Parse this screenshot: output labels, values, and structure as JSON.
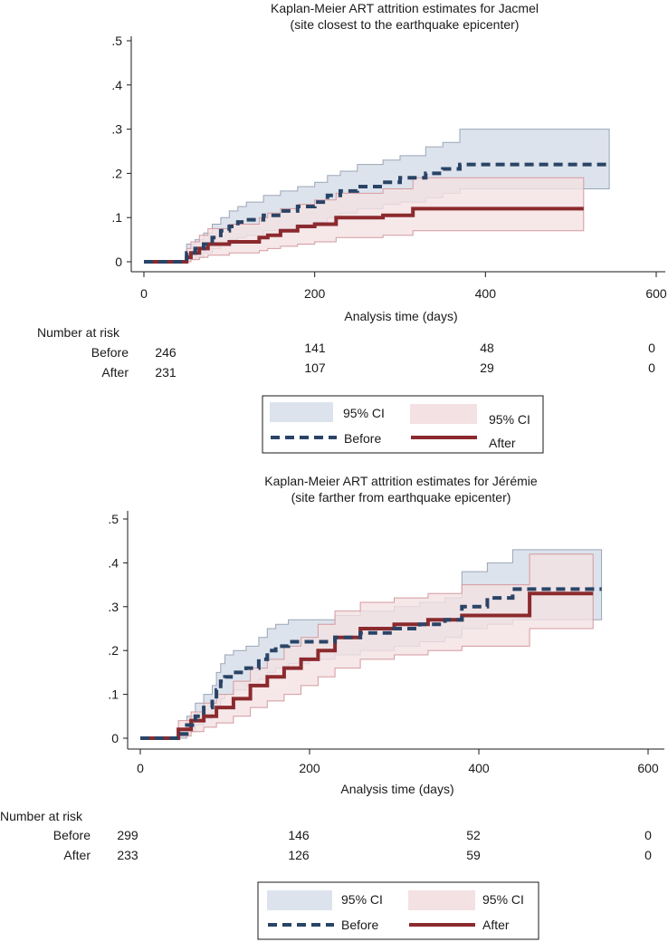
{
  "chart_data": [
    {
      "type": "line",
      "title": "Kaplan-Meier ART attrition estimates for Jacmel",
      "subtitle": "(site closest to the earthquake epicenter)",
      "xlabel": "Analysis time (days)",
      "ylabel": "",
      "xlim": [
        0,
        600
      ],
      "ylim": [
        0,
        0.5
      ],
      "x_ticks": [
        0,
        200,
        400,
        600
      ],
      "x_tick_labels": [
        "0",
        "200",
        "400",
        "600"
      ],
      "y_ticks": [
        0,
        0.1,
        0.2,
        0.3,
        0.4,
        0.5
      ],
      "y_tick_labels": [
        "0",
        ".1",
        ".2",
        ".3",
        ".4",
        ".5"
      ],
      "grid": false,
      "legend_position": "bottom",
      "legend": {
        "ci_before_label": "95% CI",
        "ci_after_label": "95% CI",
        "before_label": "Before",
        "after_label": "After"
      },
      "colors": {
        "before": "#2a4466",
        "after": "#8b2a2e",
        "ci_before_fill": "#dde3ec",
        "ci_before_edge": "#9aa6b6",
        "ci_after_fill": "#f4e1e3",
        "ci_after_edge": "#d49a9f"
      },
      "series": [
        {
          "name": "Before",
          "style": "dashed",
          "x": [
            0,
            45,
            50,
            60,
            70,
            80,
            90,
            100,
            110,
            120,
            140,
            160,
            180,
            200,
            215,
            230,
            250,
            280,
            300,
            330,
            350,
            370,
            545
          ],
          "y": [
            0,
            0,
            0.02,
            0.03,
            0.04,
            0.055,
            0.07,
            0.08,
            0.09,
            0.095,
            0.105,
            0.115,
            0.125,
            0.135,
            0.15,
            0.16,
            0.17,
            0.18,
            0.19,
            0.2,
            0.21,
            0.22,
            0.22
          ],
          "ci_lower": [
            0,
            0,
            0.005,
            0.01,
            0.02,
            0.03,
            0.04,
            0.05,
            0.055,
            0.06,
            0.07,
            0.075,
            0.085,
            0.09,
            0.1,
            0.11,
            0.12,
            0.13,
            0.135,
            0.145,
            0.155,
            0.165,
            0.165
          ],
          "ci_upper": [
            0,
            0,
            0.04,
            0.05,
            0.065,
            0.085,
            0.1,
            0.115,
            0.125,
            0.135,
            0.15,
            0.16,
            0.17,
            0.18,
            0.195,
            0.205,
            0.22,
            0.23,
            0.24,
            0.26,
            0.27,
            0.3,
            0.3
          ]
        },
        {
          "name": "After",
          "style": "solid",
          "x": [
            0,
            45,
            50,
            55,
            65,
            75,
            100,
            135,
            145,
            160,
            180,
            200,
            225,
            280,
            315,
            515
          ],
          "y": [
            0,
            0,
            0.01,
            0.02,
            0.03,
            0.04,
            0.045,
            0.055,
            0.06,
            0.07,
            0.08,
            0.085,
            0.1,
            0.105,
            0.12,
            0.12
          ],
          "ci_lower": [
            0,
            0,
            0,
            0.005,
            0.01,
            0.015,
            0.02,
            0.025,
            0.03,
            0.035,
            0.04,
            0.045,
            0.055,
            0.06,
            0.07,
            0.07
          ],
          "ci_upper": [
            0,
            0,
            0.03,
            0.045,
            0.06,
            0.075,
            0.085,
            0.1,
            0.11,
            0.12,
            0.13,
            0.14,
            0.155,
            0.165,
            0.19,
            0.19
          ]
        }
      ],
      "number_at_risk": {
        "heading": "Number at risk",
        "rows": [
          {
            "label": "Before",
            "values": [
              "246",
              "141",
              "48",
              "0"
            ]
          },
          {
            "label": "After",
            "values": [
              "231",
              "107",
              "29",
              "0"
            ]
          }
        ]
      }
    },
    {
      "type": "line",
      "title": "Kaplan-Meier ART attrition estimates for Jérémie",
      "subtitle": "(site farther from earthquake epicenter)",
      "xlabel": "Analysis time (days)",
      "ylabel": "",
      "xlim": [
        0,
        600
      ],
      "ylim": [
        0,
        0.5
      ],
      "x_ticks": [
        0,
        200,
        400,
        600
      ],
      "x_tick_labels": [
        "0",
        "200",
        "400",
        "600"
      ],
      "y_ticks": [
        0,
        0.1,
        0.2,
        0.3,
        0.4,
        0.5
      ],
      "y_tick_labels": [
        "0",
        ".1",
        ".2",
        ".3",
        ".4",
        ".5"
      ],
      "grid": false,
      "legend_position": "bottom",
      "legend": {
        "ci_before_label": "95% CI",
        "ci_after_label": "95% CI",
        "before_label": "Before",
        "after_label": "After"
      },
      "colors": {
        "before": "#2a4466",
        "after": "#8b2a2e",
        "ci_before_fill": "#dde3ec",
        "ci_before_edge": "#9aa6b6",
        "ci_after_fill": "#f4e1e3",
        "ci_after_edge": "#d49a9f"
      },
      "series": [
        {
          "name": "Before",
          "style": "dashed",
          "x": [
            0,
            40,
            45,
            55,
            65,
            75,
            85,
            90,
            95,
            100,
            110,
            125,
            140,
            150,
            160,
            175,
            200,
            230,
            260,
            300,
            330,
            360,
            380,
            410,
            440,
            545
          ],
          "y": [
            0,
            0,
            0.01,
            0.03,
            0.05,
            0.07,
            0.09,
            0.11,
            0.13,
            0.14,
            0.15,
            0.16,
            0.18,
            0.2,
            0.21,
            0.22,
            0.22,
            0.23,
            0.24,
            0.25,
            0.26,
            0.27,
            0.3,
            0.32,
            0.34,
            0.34
          ],
          "ci_lower": [
            0,
            0,
            0,
            0.015,
            0.03,
            0.045,
            0.06,
            0.075,
            0.09,
            0.1,
            0.11,
            0.12,
            0.135,
            0.15,
            0.16,
            0.17,
            0.18,
            0.19,
            0.2,
            0.21,
            0.22,
            0.23,
            0.25,
            0.26,
            0.27,
            0.27
          ],
          "ci_upper": [
            0,
            0,
            0.02,
            0.05,
            0.08,
            0.1,
            0.12,
            0.15,
            0.17,
            0.19,
            0.2,
            0.21,
            0.23,
            0.25,
            0.26,
            0.27,
            0.27,
            0.28,
            0.29,
            0.3,
            0.31,
            0.32,
            0.38,
            0.4,
            0.43,
            0.43
          ]
        },
        {
          "name": "After",
          "style": "solid",
          "x": [
            0,
            40,
            45,
            60,
            75,
            90,
            110,
            130,
            150,
            170,
            190,
            210,
            230,
            260,
            300,
            340,
            380,
            460,
            535
          ],
          "y": [
            0,
            0,
            0.02,
            0.04,
            0.05,
            0.07,
            0.09,
            0.12,
            0.14,
            0.16,
            0.18,
            0.2,
            0.23,
            0.25,
            0.26,
            0.27,
            0.28,
            0.33,
            0.33
          ],
          "ci_lower": [
            0,
            0,
            0.005,
            0.015,
            0.025,
            0.035,
            0.05,
            0.07,
            0.085,
            0.1,
            0.12,
            0.14,
            0.16,
            0.18,
            0.19,
            0.2,
            0.21,
            0.25,
            0.25
          ],
          "ci_upper": [
            0,
            0,
            0.04,
            0.06,
            0.08,
            0.1,
            0.13,
            0.16,
            0.18,
            0.21,
            0.23,
            0.26,
            0.29,
            0.31,
            0.32,
            0.33,
            0.35,
            0.42,
            0.42
          ]
        }
      ],
      "number_at_risk": {
        "heading": "Number at risk",
        "rows": [
          {
            "label": "Before",
            "values": [
              "299",
              "146",
              "52",
              "0"
            ]
          },
          {
            "label": "After",
            "values": [
              "233",
              "126",
              "59",
              "0"
            ]
          }
        ]
      }
    }
  ]
}
